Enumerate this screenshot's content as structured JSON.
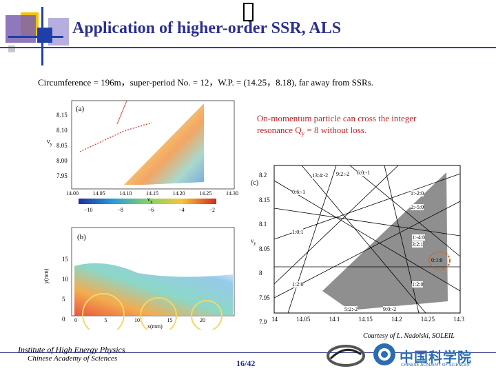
{
  "slide": {
    "title": "Application of higher-order SSR, ALS",
    "subtitle": "Circumference = 196m，super-period No. = 12，W.P. = (14.25，8.18), far away from SSRs.",
    "note_line1": "On-momentum particle can cross the integer",
    "note_line2_prefix": "resonance Q",
    "note_line2_sub": "y",
    "note_line2_suffix": " = 8 without loss.",
    "courtesy": "Courtesy of  L. Nadolski, SOLEIL",
    "page": "16/42",
    "institute_line1": "Institute of High Energy Physics",
    "institute_line2": "Chinese Academy of Sciences",
    "cas_logo_text": "中国科学院",
    "cas_logo_sub": "CHINESE ACADEMY OF SCIENCES"
  },
  "colors": {
    "title": "#2b2f8f",
    "note": "#c0262a",
    "accent_yellow": "#f5c400",
    "accent_purple": "#5a2d82",
    "accent_blue": "#1f3ea8",
    "highlight_circle": "#d2691e"
  },
  "panel_a": {
    "label": "(a)",
    "x_axis_label": "ν",
    "x_axis_sub": "x",
    "y_axis_label": "ν",
    "y_axis_sub": "y",
    "x_ticks": [
      "14.00",
      "14.05",
      "14.10",
      "14.15",
      "14.20",
      "14.25",
      "14.30"
    ],
    "y_ticks": [
      "8.15",
      "8.10",
      "8.05",
      "8.00",
      "7.95"
    ],
    "colorbar_ticks": [
      "−10",
      "−8",
      "−6",
      "−4",
      "−2"
    ]
  },
  "panel_b": {
    "label": "(b)",
    "x_axis_label": "x(mm)",
    "y_axis_label": "y(mm)",
    "x_ticks": [
      "0",
      "5",
      "10",
      "15",
      "20"
    ],
    "y_ticks": [
      "15",
      "10",
      "5",
      "0"
    ]
  },
  "panel_c": {
    "label": "(c)",
    "y_axis_label": "ν",
    "y_axis_sub": "y",
    "x_ticks": [
      "14",
      "14.05",
      "14.1",
      "14.15",
      "14.2",
      "14.25",
      "14.3"
    ],
    "y_ticks": [
      "8.2",
      "8.15",
      "8.1",
      "8.05",
      "8",
      "7.95",
      "7.9"
    ],
    "resonance_labels": [
      "13:4:-2",
      "9:2:-2",
      "6:0:-1",
      "0:6:-1",
      "1:-2:0",
      "2:-5:0",
      "1:0:1",
      "1:-4:0",
      "3:2:1",
      "0:1:0",
      "1:2:0",
      "1:2:0",
      "5:2:-2",
      "9:0:-2"
    ]
  }
}
